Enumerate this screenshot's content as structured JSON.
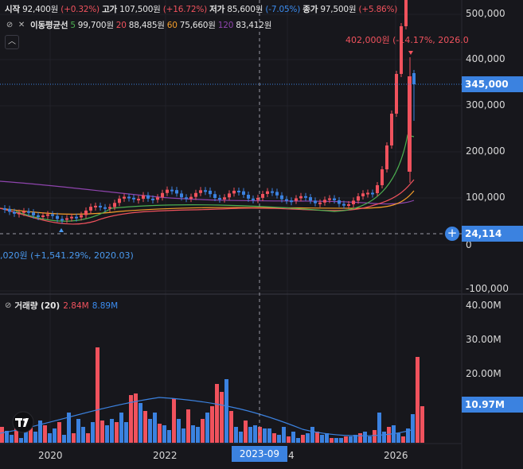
{
  "legend": {
    "open_label": "시작",
    "open_value": "92,400원",
    "open_change": "(+0.32%)",
    "high_label": "고가",
    "high_value": "107,500원",
    "high_change": "(+16.72%)",
    "low_label": "저가",
    "low_value": "85,600원",
    "low_change": "(-7.05%)",
    "close_label": "종가",
    "close_value": "97,500원",
    "close_change": "(+5.86%)"
  },
  "ma": {
    "label": "이동평균선",
    "items": [
      {
        "period": "5",
        "value": "99,700원",
        "color": "#4caf50"
      },
      {
        "period": "20",
        "value": "88,485원",
        "color": "#f0525d"
      },
      {
        "period": "60",
        "value": "75,660원",
        "color": "#f59e2a"
      },
      {
        "period": "120",
        "value": "83,412원",
        "color": "#8e44ad"
      }
    ]
  },
  "collapse_icon": "chevron-up-icon",
  "price_axis": [
    "500,000",
    "400,000",
    "300,000",
    "200,000",
    "100,000",
    "0",
    "-100,000"
  ],
  "last_price_tag": "345,000",
  "crosshair_price_tag": "24,114",
  "high_annotation": "402,000원 (-14.17%, 2026.0",
  "low_annotation": ",020원 (+1,541.29%, 2020.03)",
  "volume": {
    "label": "거래량 (20)",
    "vol_value": "2.84M",
    "ma_value": "8.89M",
    "axis": [
      "40.00M",
      "30.00M",
      "20.00M"
    ],
    "ma_tag": "10.97M"
  },
  "time_axis": [
    "2020",
    "2022",
    "4",
    "2026"
  ],
  "crosshair_time_tag": "2023-09",
  "colors": {
    "up": "#f0525d",
    "down": "#3b82e0",
    "bg": "#17171c",
    "accent": "#3b82e0"
  }
}
